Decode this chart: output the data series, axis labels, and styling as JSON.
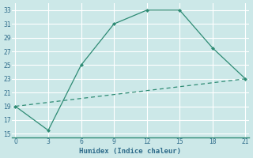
{
  "xlabel": "Humidex (Indice chaleur)",
  "line1_x": [
    0,
    3,
    6,
    9,
    12,
    15,
    18,
    21
  ],
  "line1_y": [
    19,
    15.5,
    25,
    31,
    33,
    33,
    27.5,
    23
  ],
  "line2_x": [
    0,
    21
  ],
  "line2_y": [
    19,
    23
  ],
  "color": "#2e8b74",
  "xlim": [
    -0.3,
    21.3
  ],
  "ylim": [
    14.5,
    34
  ],
  "xticks": [
    0,
    3,
    6,
    9,
    12,
    15,
    18,
    21
  ],
  "yticks": [
    15,
    17,
    19,
    21,
    23,
    25,
    27,
    29,
    31,
    33
  ],
  "bg_color": "#cce8e8",
  "grid_color": "#ffffff",
  "tick_color": "#2e6b8a",
  "xlabel_color": "#2e6b8a"
}
